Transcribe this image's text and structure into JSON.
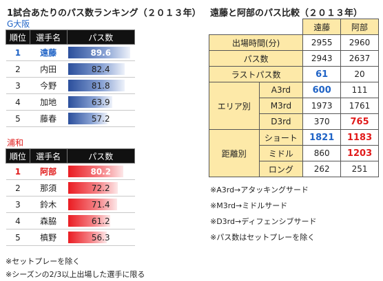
{
  "left_title": "1試合あたりのパス数ランキング（２０１３年）",
  "right_title": "遠藤と阿部のパス比較（２０１３年）",
  "headers": {
    "rank": "順位",
    "name": "選手名",
    "passes": "パス数"
  },
  "gamba": {
    "team": "G大阪",
    "rows": [
      {
        "rank": "1",
        "name": "遠藤",
        "value": 89.6
      },
      {
        "rank": "2",
        "name": "内田",
        "value": 82.4
      },
      {
        "rank": "3",
        "name": "今野",
        "value": 81.8
      },
      {
        "rank": "4",
        "name": "加地",
        "value": 63.9
      },
      {
        "rank": "5",
        "name": "藤春",
        "value": 57.2
      }
    ]
  },
  "urawa": {
    "team": "浦和",
    "rows": [
      {
        "rank": "1",
        "name": "阿部",
        "value": 80.2
      },
      {
        "rank": "2",
        "name": "那須",
        "value": 72.2
      },
      {
        "rank": "3",
        "name": "鈴木",
        "value": 71.4
      },
      {
        "rank": "4",
        "name": "森脇",
        "value": 61.2
      },
      {
        "rank": "5",
        "name": "槙野",
        "value": 56.3
      }
    ]
  },
  "compare": {
    "players": [
      "遠藤",
      "阿部"
    ],
    "rows": [
      {
        "label": "出場時間(分)",
        "endo": "2955",
        "abe": "2960"
      },
      {
        "label": "パス数",
        "endo": "2943",
        "abe": "2637"
      },
      {
        "label": "ラストパス数",
        "endo": "61",
        "abe": "20"
      }
    ],
    "area": {
      "label": "エリア別",
      "rows": [
        {
          "label": "A3rd",
          "endo": "600",
          "abe": "111"
        },
        {
          "label": "M3rd",
          "endo": "1973",
          "abe": "1761"
        },
        {
          "label": "D3rd",
          "endo": "370",
          "abe": "765"
        }
      ]
    },
    "distance": {
      "label": "距離別",
      "rows": [
        {
          "label": "ショート",
          "endo": "1821",
          "abe": "1183"
        },
        {
          "label": "ミドル",
          "endo": "860",
          "abe": "1203"
        },
        {
          "label": "ロング",
          "endo": "262",
          "abe": "251"
        }
      ]
    }
  },
  "right_notes": [
    "※A3rd→アタッキングサード",
    "※M3rd→ミドルサード",
    "※D3rd→ディフェンシブサード",
    "※パス数はセットプレーを除く"
  ],
  "left_notes": [
    "※セットプレーを除く",
    "※シーズンの2/3以上出場した選手に限る"
  ],
  "bar_scale_max": 95
}
